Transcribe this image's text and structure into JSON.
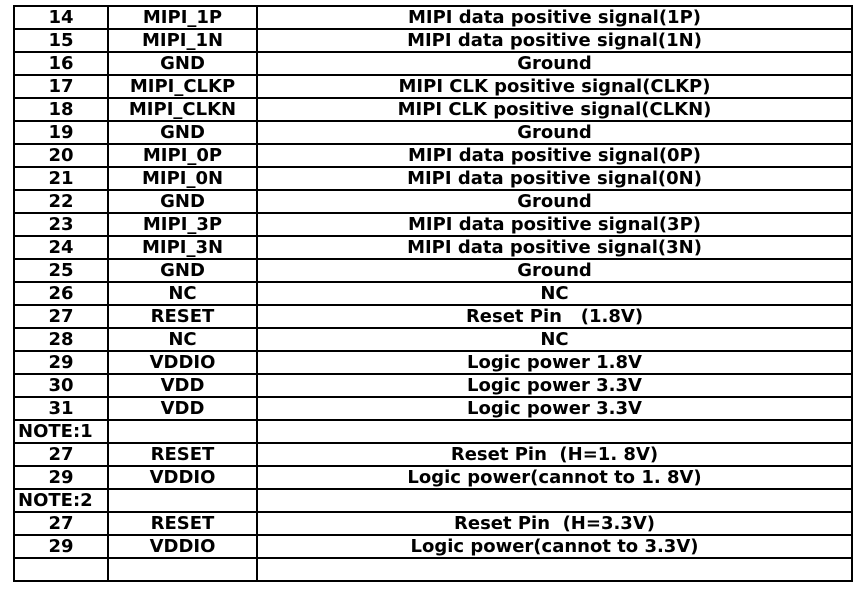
{
  "colors": {
    "background": "#ffffff",
    "border": "#000000",
    "text": "#000000"
  },
  "table": {
    "description": "MIPI connector pin description table fragment (no visible header row)",
    "rows": [
      {
        "type": "data",
        "pin": "14",
        "signal": "MIPI_1P",
        "description": "MIPI data positive signal(1P)"
      },
      {
        "type": "data",
        "pin": "15",
        "signal": "MIPI_1N",
        "description": "MIPI data positive signal(1N)"
      },
      {
        "type": "data",
        "pin": "16",
        "signal": "GND",
        "description": "Ground"
      },
      {
        "type": "data",
        "pin": "17",
        "signal": "MIPI_CLKP",
        "description": "MIPI CLK positive signal(CLKP)"
      },
      {
        "type": "data",
        "pin": "18",
        "signal": "MIPI_CLKN",
        "description": "MIPI CLK positive signal(CLKN)"
      },
      {
        "type": "data",
        "pin": "19",
        "signal": "GND",
        "description": "Ground"
      },
      {
        "type": "data",
        "pin": "20",
        "signal": "MIPI_0P",
        "description": "MIPI data positive signal(0P)"
      },
      {
        "type": "data",
        "pin": "21",
        "signal": "MIPI_0N",
        "description": "MIPI data positive signal(0N)"
      },
      {
        "type": "data",
        "pin": "22",
        "signal": "GND",
        "description": "Ground"
      },
      {
        "type": "data",
        "pin": "23",
        "signal": "MIPI_3P",
        "description": "MIPI data positive signal(3P)"
      },
      {
        "type": "data",
        "pin": "24",
        "signal": "MIPI_3N",
        "description": "MIPI data positive signal(3N)"
      },
      {
        "type": "data",
        "pin": "25",
        "signal": "GND",
        "description": "Ground"
      },
      {
        "type": "data",
        "pin": "26",
        "signal": "NC",
        "description": "NC"
      },
      {
        "type": "data",
        "pin": "27",
        "signal": "RESET",
        "description": "Reset Pin   (1.8V)"
      },
      {
        "type": "data",
        "pin": "28",
        "signal": "NC",
        "description": "NC"
      },
      {
        "type": "data",
        "pin": "29",
        "signal": "VDDIO",
        "description": "Logic power 1.8V"
      },
      {
        "type": "data",
        "pin": "30",
        "signal": "VDD",
        "description": "Logic power 3.3V"
      },
      {
        "type": "data",
        "pin": "31",
        "signal": "VDD",
        "description": "Logic power 3.3V"
      },
      {
        "type": "note",
        "pin": "NOTE:1",
        "signal": "",
        "description": ""
      },
      {
        "type": "data",
        "pin": "27",
        "signal": "RESET",
        "description": "Reset Pin  (H=1. 8V)"
      },
      {
        "type": "data",
        "pin": "29",
        "signal": "VDDIO",
        "description": "Logic power(cannot to 1. 8V)"
      },
      {
        "type": "note",
        "pin": "NOTE:2",
        "signal": "",
        "description": ""
      },
      {
        "type": "data",
        "pin": "27",
        "signal": "RESET",
        "description": "Reset Pin  (H=3.3V)"
      },
      {
        "type": "data",
        "pin": "29",
        "signal": "VDDIO",
        "description": "Logic power(cannot to 3.3V)"
      },
      {
        "type": "empty",
        "pin": "",
        "signal": "",
        "description": ""
      }
    ]
  }
}
